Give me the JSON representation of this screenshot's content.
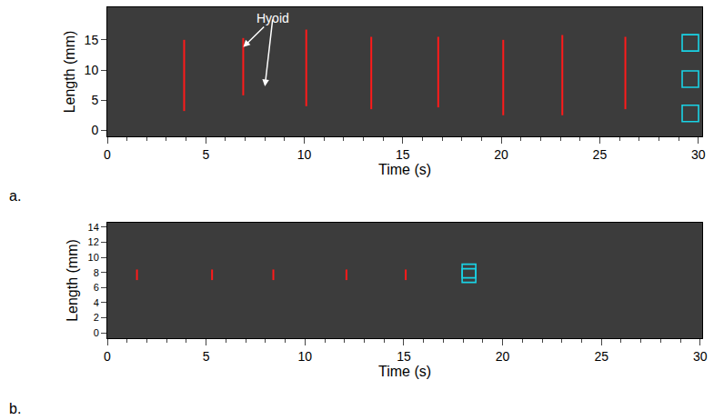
{
  "chart_data": [
    {
      "type": "line",
      "panel_label": "a.",
      "x_label": "Time (s)",
      "y_label": "Length (mm)",
      "xlim": [
        0,
        30.2
      ],
      "xticks": [
        0,
        5,
        10,
        15,
        20,
        25,
        30
      ],
      "ylim": [
        -1,
        20.4
      ],
      "yticks": [
        0,
        5,
        10,
        15
      ],
      "grid": false,
      "series": [
        {
          "type": "segments",
          "color": "#ff1a1a",
          "x": [
            3.9,
            6.9,
            10.1,
            13.4,
            16.8,
            20.1,
            23.1,
            26.3
          ],
          "y0": [
            3.2,
            5.8,
            4.0,
            3.5,
            3.8,
            2.5,
            2.5,
            3.5
          ],
          "y1": [
            15.0,
            15.3,
            16.7,
            15.5,
            15.5,
            15.0,
            15.8,
            15.5
          ]
        },
        {
          "type": "boxes",
          "color": "#19d3e6",
          "marker": "square-open",
          "x": [
            29.6,
            29.6,
            29.6
          ],
          "y": [
            14.5,
            8.5,
            2.8
          ]
        }
      ],
      "annotations": [
        {
          "text": "Hyoid",
          "x": 8.4,
          "y": 18.6,
          "arrows_to": [
            [
              6.9,
              13.8
            ],
            [
              8.0,
              7.3
            ]
          ]
        }
      ]
    },
    {
      "type": "line",
      "panel_label": "b.",
      "x_label": "Time (s)",
      "y_label": "Length (mm)",
      "xlim": [
        0,
        30.1
      ],
      "xticks": [
        0,
        5,
        10,
        15,
        20,
        25,
        30
      ],
      "ylim": [
        -0.7,
        14.6
      ],
      "yticks": [
        0,
        2,
        4,
        6,
        8,
        10,
        12,
        14
      ],
      "grid": false,
      "series": [
        {
          "type": "segments",
          "color": "#ff1a1a",
          "x": [
            1.5,
            5.3,
            8.4,
            12.1,
            15.1
          ],
          "y0": [
            7.0,
            7.0,
            7.0,
            7.0,
            7.0
          ],
          "y1": [
            8.4,
            8.4,
            8.4,
            8.4,
            8.4
          ]
        },
        {
          "type": "boxes",
          "color": "#19d3e6",
          "marker": "square-open",
          "x": [
            18.3,
            18.3
          ],
          "y": [
            8.2,
            7.6
          ]
        }
      ],
      "annotations": []
    }
  ]
}
